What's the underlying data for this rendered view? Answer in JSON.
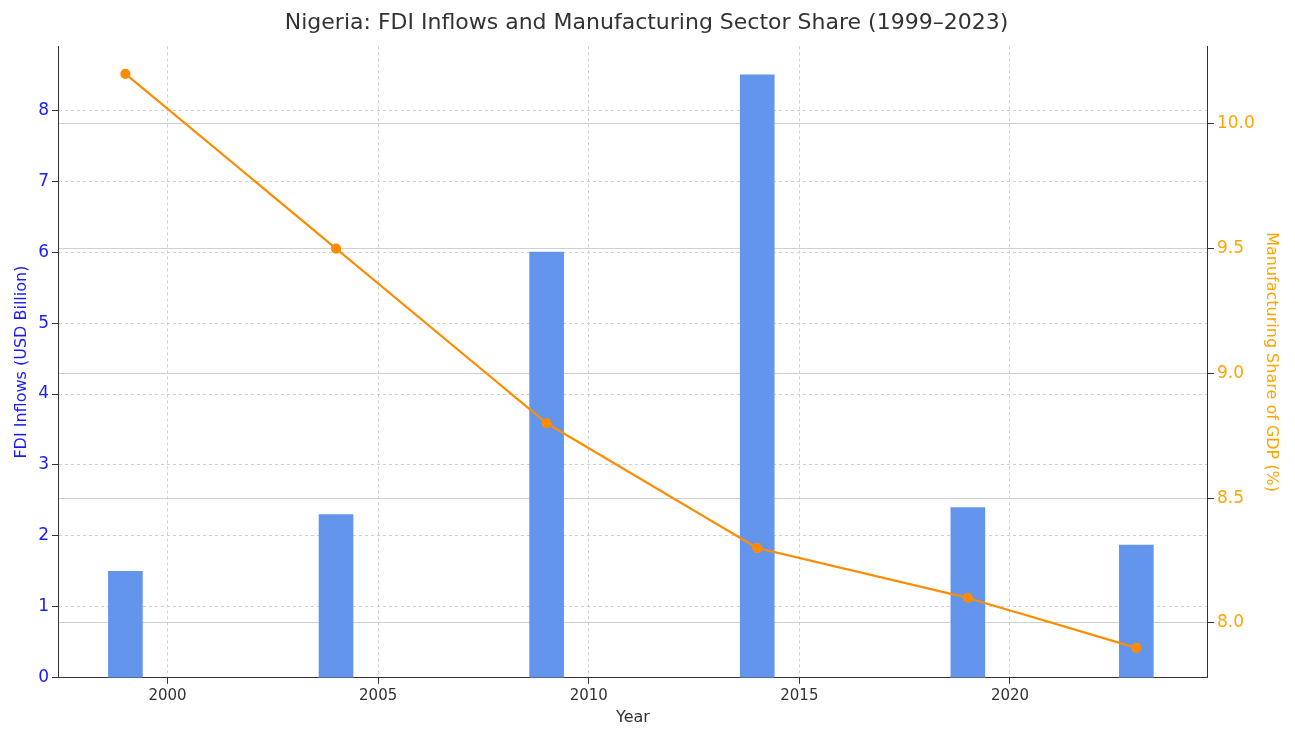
{
  "chart_data": {
    "type": "bar",
    "title": "Nigeria: FDI Inflows and Manufacturing Sector Share (1999–2023)",
    "xlabel": "Year",
    "ylabel": "FDI Inflows (USD Billion)",
    "y2label": "Manufacturing Share of GDP (%)",
    "x": [
      1999,
      2004,
      2009,
      2014,
      2019,
      2023
    ],
    "series": [
      {
        "color": "#6495ed",
        "values": [
          1.5,
          2.3,
          6.0,
          8.5,
          2.4,
          1.87
        ]
      },
      {
        "type": "line",
        "axis": "y2",
        "color": "#ff8c00",
        "values": [
          10.2,
          9.5,
          8.8,
          8.3,
          8.1,
          7.9
        ]
      }
    ],
    "xlim": [
      1997.4,
      2024.7
    ],
    "xticks": [
      2000,
      2005,
      2010,
      2015,
      2020
    ],
    "ylim": [
      0,
      8.9
    ],
    "yticks": [
      0,
      1,
      2,
      3,
      4,
      5,
      6,
      7,
      8
    ],
    "y2lim": [
      7.78,
      10.31
    ],
    "y2ticks": [
      {
        "value": 8.0,
        "label": "8.0"
      },
      {
        "value": 8.5,
        "label": "8.5"
      },
      {
        "value": 9.0,
        "label": "9.0"
      },
      {
        "value": 9.5,
        "label": "9.5"
      },
      {
        "value": 10.0,
        "label": "10.0"
      }
    ],
    "grid": true,
    "marker": "circle"
  }
}
